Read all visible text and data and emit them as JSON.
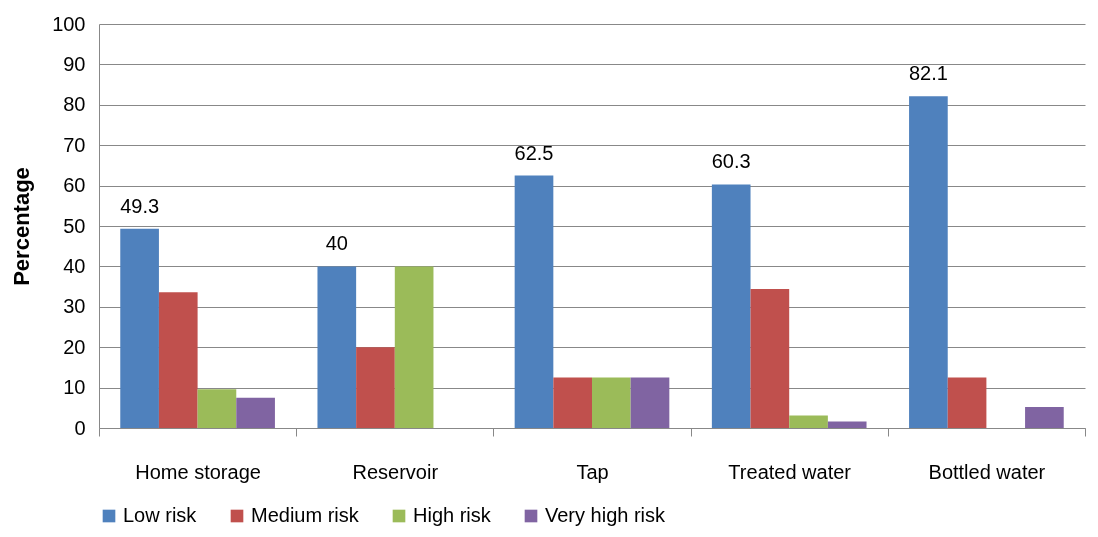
{
  "chart_data": {
    "type": "bar",
    "ylabel": "Percentage",
    "categories": [
      "Home storage",
      "Reservoir",
      "Tap",
      "Treated water",
      "Bottled water"
    ],
    "series": [
      {
        "name": "Low risk",
        "color": "#4f81bd",
        "values": [
          49.3,
          40,
          62.5,
          60.3,
          82.1
        ],
        "value_labels": [
          "49.3",
          "40",
          "62.5",
          "60.3",
          "82.1"
        ]
      },
      {
        "name": "Medium risk",
        "color": "#c0504d",
        "values": [
          33.6,
          20,
          12.5,
          34.4,
          12.5
        ]
      },
      {
        "name": "High risk",
        "color": "#9bbb59",
        "values": [
          9.6,
          40,
          12.5,
          3.1,
          null
        ]
      },
      {
        "name": "Very high risk",
        "color": "#8064a2",
        "values": [
          7.5,
          null,
          12.5,
          1.6,
          5.2
        ]
      }
    ],
    "ylim": [
      0,
      100
    ],
    "yticks": [
      0,
      10,
      20,
      30,
      40,
      50,
      60,
      70,
      80,
      90,
      100
    ],
    "grid": "y",
    "legend": "bottom"
  }
}
